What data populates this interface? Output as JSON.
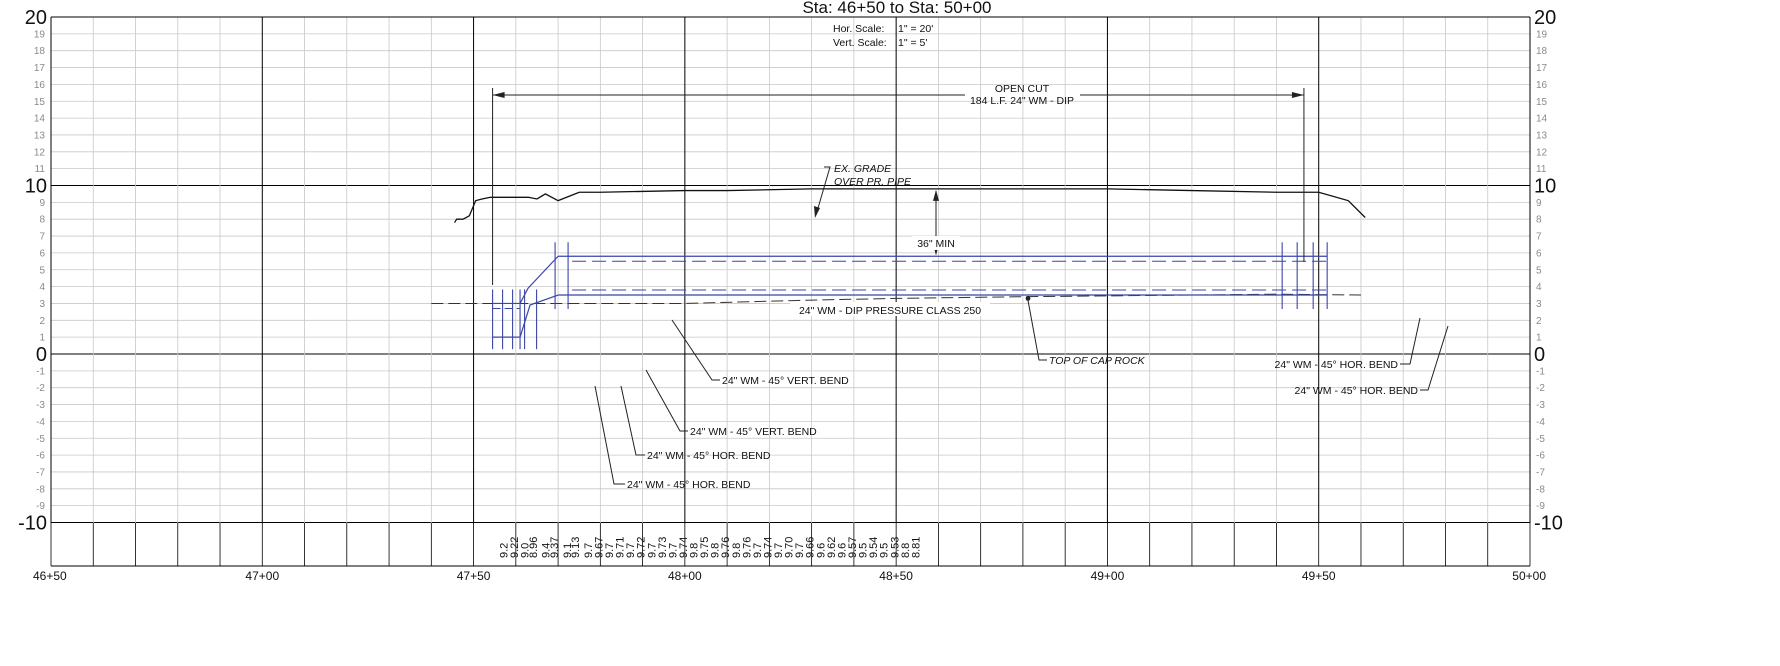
{
  "title": "Sta: 46+50 to Sta: 50+00",
  "scale": {
    "hor_label": "Hor.  Scale:",
    "hor_value": "1\" = 20'",
    "vert_label": "Vert.  Scale:",
    "vert_value": "1\" = 5'"
  },
  "colors": {
    "grid_minor": "#c8c8c8",
    "grid_major": "#000000",
    "pipe": "#3a45a8",
    "grade": "#111111"
  },
  "chart_data": {
    "type": "line",
    "x_axis": {
      "range": [
        4650,
        5000
      ],
      "labels": [
        {
          "x": 4650,
          "text": "46+50"
        },
        {
          "x": 4700,
          "text": "47+00"
        },
        {
          "x": 4750,
          "text": "47+50"
        },
        {
          "x": 4800,
          "text": "48+00"
        },
        {
          "x": 4850,
          "text": "48+50"
        },
        {
          "x": 4900,
          "text": "49+00"
        },
        {
          "x": 4950,
          "text": "49+50"
        },
        {
          "x": 5000,
          "text": "50+00"
        }
      ]
    },
    "y_axis": {
      "range": [
        -10,
        20
      ],
      "major": [
        {
          "y": 20,
          "text": "20"
        },
        {
          "y": 10,
          "text": "10"
        },
        {
          "y": 0,
          "text": "0"
        },
        {
          "y": -10,
          "text": "-10"
        }
      ],
      "minor": [
        {
          "y": 19,
          "text": "19"
        },
        {
          "y": 18,
          "text": "18"
        },
        {
          "y": 17,
          "text": "17"
        },
        {
          "y": 16,
          "text": "16"
        },
        {
          "y": 15,
          "text": "15"
        },
        {
          "y": 14,
          "text": "14"
        },
        {
          "y": 13,
          "text": "13"
        },
        {
          "y": 12,
          "text": "12"
        },
        {
          "y": 11,
          "text": "11"
        },
        {
          "y": 9,
          "text": "9"
        },
        {
          "y": 8,
          "text": "8"
        },
        {
          "y": 7,
          "text": "7"
        },
        {
          "y": 6,
          "text": "6"
        },
        {
          "y": 5,
          "text": "5"
        },
        {
          "y": 4,
          "text": "4"
        },
        {
          "y": 3,
          "text": "3"
        },
        {
          "y": 2,
          "text": "2"
        },
        {
          "y": 1,
          "text": "1"
        },
        {
          "y": -1,
          "text": "-1"
        },
        {
          "y": -2,
          "text": "-2"
        },
        {
          "y": -3,
          "text": "-3"
        },
        {
          "y": -4,
          "text": "-4"
        },
        {
          "y": -5,
          "text": "-5"
        },
        {
          "y": -6,
          "text": "-6"
        },
        {
          "y": -7,
          "text": "-7"
        },
        {
          "y": -8,
          "text": "-8"
        },
        {
          "y": -9,
          "text": "-9"
        }
      ]
    },
    "grid": true,
    "series": [
      {
        "key": "existing_grade",
        "x": [
          4745.5,
          4746,
          4747.5,
          4749,
          4750.5,
          4752,
          4754,
          4757,
          4760,
          4763,
          4765,
          4767,
          4770,
          4773,
          4775,
          4780,
          4800,
          4810,
          4830,
          4850,
          4880,
          4900,
          4920,
          4940,
          4946,
          4950,
          4957,
          4961
        ],
        "y": [
          7.8,
          8.0,
          8.0,
          8.2,
          9.1,
          9.2,
          9.3,
          9.3,
          9.3,
          9.3,
          9.2,
          9.5,
          9.1,
          9.4,
          9.6,
          9.6,
          9.7,
          9.7,
          9.8,
          9.8,
          9.8,
          9.8,
          9.7,
          9.6,
          9.6,
          9.6,
          9.1,
          8.1
        ]
      },
      {
        "key": "top_of_cap_rock",
        "x": [
          4740,
          4760,
          4780,
          4800,
          4830,
          4850,
          4880,
          4900,
          4920,
          4940,
          4960
        ],
        "y": [
          3.0,
          3.0,
          3.0,
          3.0,
          3.2,
          3.3,
          3.4,
          3.45,
          3.5,
          3.55,
          3.5
        ]
      }
    ],
    "elevations": [
      {
        "x": 4758,
        "text": "9.2"
      },
      {
        "x": 4760.5,
        "text": "9.22"
      },
      {
        "x": 4763,
        "text": "9.0"
      },
      {
        "x": 4765,
        "text": "8.96"
      },
      {
        "x": 4768,
        "text": "9.4"
      },
      {
        "x": 4770,
        "text": "9.37"
      },
      {
        "x": 4773,
        "text": "9.1"
      },
      {
        "x": 4775,
        "text": "9.13"
      },
      {
        "x": 4778,
        "text": "9.7"
      },
      {
        "x": 4780.5,
        "text": "9.67"
      },
      {
        "x": 4783,
        "text": "9.7"
      },
      {
        "x": 4785.5,
        "text": "9.71"
      },
      {
        "x": 4788,
        "text": "9.7"
      },
      {
        "x": 4790.5,
        "text": "9.72"
      },
      {
        "x": 4793,
        "text": "9.7"
      },
      {
        "x": 4795.5,
        "text": "9.73"
      },
      {
        "x": 4798,
        "text": "9.7"
      },
      {
        "x": 4800.5,
        "text": "9.74"
      },
      {
        "x": 4803,
        "text": "9.8"
      },
      {
        "x": 4805.5,
        "text": "9.75"
      },
      {
        "x": 4808,
        "text": "9.8"
      },
      {
        "x": 4810.5,
        "text": "9.76"
      },
      {
        "x": 4813,
        "text": "9.8"
      },
      {
        "x": 4815.5,
        "text": "9.76"
      },
      {
        "x": 4818,
        "text": "9.7"
      },
      {
        "x": 4820.5,
        "text": "9.74"
      },
      {
        "x": 4823,
        "text": "9.7"
      },
      {
        "x": 4825.5,
        "text": "9.70"
      },
      {
        "x": 4828,
        "text": "9.7"
      },
      {
        "x": 4830.5,
        "text": "9.66"
      },
      {
        "x": 4833,
        "text": "9.6"
      },
      {
        "x": 4835.5,
        "text": "9.62"
      },
      {
        "x": 4838,
        "text": "9.6"
      },
      {
        "x": 4840.5,
        "text": "9.57"
      },
      {
        "x": 4843,
        "text": "9.5"
      },
      {
        "x": 4845.5,
        "text": "9.54"
      },
      {
        "x": 4848,
        "text": "9.5"
      },
      {
        "x": 4850.5,
        "text": "9.53"
      },
      {
        "x": 4853,
        "text": "8.8"
      },
      {
        "x": 4855.5,
        "text": "8.81"
      }
    ],
    "pipe": {
      "main_top": 5.8,
      "main_bottom": 3.5,
      "main_start": 4770,
      "main_end": 4952,
      "low_top": 3.0,
      "low_bottom": 1.0,
      "low_start": 4754.5,
      "low_end": 4761,
      "label": "24\" WM - DIP PRESSURE CLASS 250"
    },
    "annotations": {
      "open_cut_line1": "OPEN CUT",
      "open_cut_line2": "184 L.F. 24\" WM - DIP",
      "open_cut_from": 4754.5,
      "open_cut_to": 4946.5,
      "ex_grade_line1": "EX. GRADE",
      "ex_grade_line2": "OVER PR. PIPE",
      "min_cover": "36\" MIN",
      "top_cap_rock": "TOP OF CAP ROCK",
      "vert_bend_1": "24\" WM - 45° VERT. BEND",
      "vert_bend_2": "24\" WM - 45° VERT. BEND",
      "hor_bend_left_1": "24\" WM - 45° HOR. BEND",
      "hor_bend_left_2": "24\" WM - 45° HOR. BEND",
      "hor_bend_right_1": "24\" WM - 45° HOR. BEND",
      "hor_bend_right_2": "24\" WM - 45° HOR. BEND"
    }
  }
}
